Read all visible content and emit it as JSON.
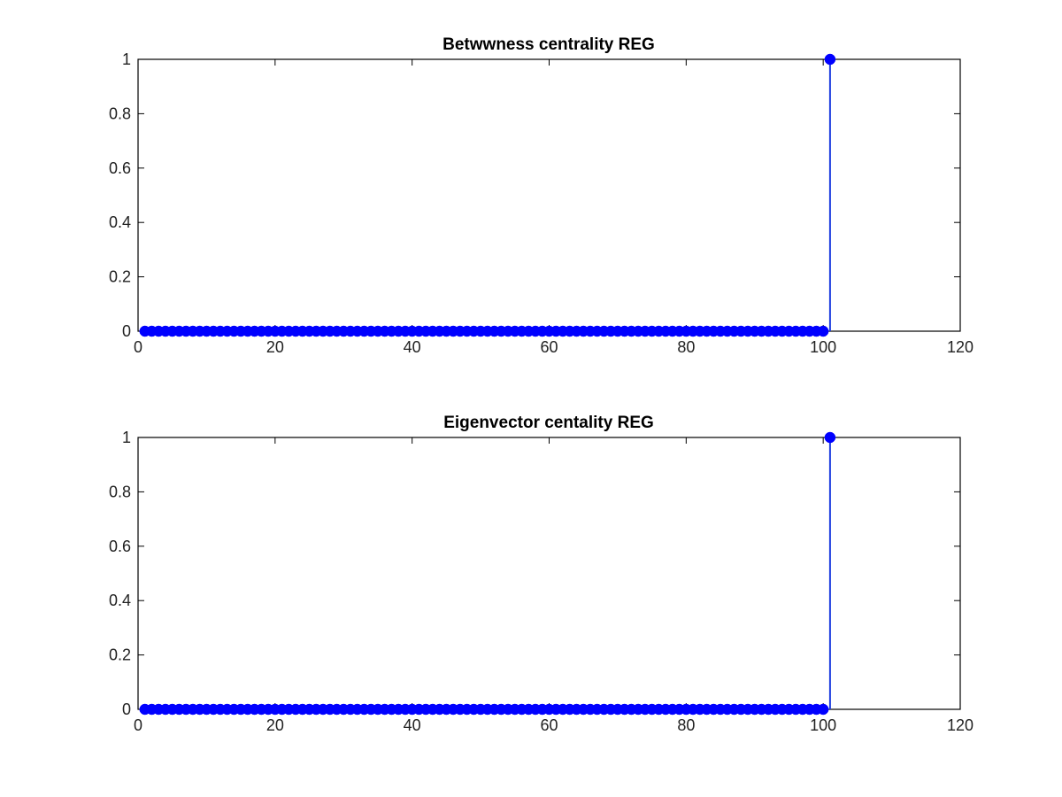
{
  "figure": {
    "background": "#ffffff",
    "axes_color": "#000000",
    "series_color": "#0000ff",
    "stem_color": "#1f3fe0"
  },
  "chart_data": [
    {
      "type": "stem",
      "title": "Betwwness centrality REG",
      "xlabel": "",
      "ylabel": "",
      "xlim": [
        0,
        120
      ],
      "ylim": [
        0,
        1
      ],
      "xticks": [
        0,
        20,
        40,
        60,
        80,
        100,
        120
      ],
      "xtick_labels": [
        "0",
        "20",
        "40",
        "60",
        "80",
        "100",
        "120"
      ],
      "yticks": [
        0,
        0.2,
        0.4,
        0.6,
        0.8,
        1
      ],
      "ytick_labels": [
        "0",
        "0.2",
        "0.4",
        "0.6",
        "0.8",
        "1"
      ],
      "grid": false,
      "box": true,
      "series": [
        {
          "x_start": 1,
          "x_end": 101,
          "values": [
            0,
            0,
            0,
            0,
            0,
            0,
            0,
            0,
            0,
            0,
            0,
            0,
            0,
            0,
            0,
            0,
            0,
            0,
            0,
            0,
            0,
            0,
            0,
            0,
            0,
            0,
            0,
            0,
            0,
            0,
            0,
            0,
            0,
            0,
            0,
            0,
            0,
            0,
            0,
            0,
            0,
            0,
            0,
            0,
            0,
            0,
            0,
            0,
            0,
            0,
            0,
            0,
            0,
            0,
            0,
            0,
            0,
            0,
            0,
            0,
            0,
            0,
            0,
            0,
            0,
            0,
            0,
            0,
            0,
            0,
            0,
            0,
            0,
            0,
            0,
            0,
            0,
            0,
            0,
            0,
            0,
            0,
            0,
            0,
            0,
            0,
            0,
            0,
            0,
            0,
            0,
            0,
            0,
            0,
            0,
            0,
            0,
            0,
            0,
            0,
            1
          ]
        }
      ]
    },
    {
      "type": "stem",
      "title": "Eigenvector centality REG",
      "xlabel": "",
      "ylabel": "",
      "xlim": [
        0,
        120
      ],
      "ylim": [
        0,
        1
      ],
      "xticks": [
        0,
        20,
        40,
        60,
        80,
        100,
        120
      ],
      "xtick_labels": [
        "0",
        "20",
        "40",
        "60",
        "80",
        "100",
        "120"
      ],
      "yticks": [
        0,
        0.2,
        0.4,
        0.6,
        0.8,
        1
      ],
      "ytick_labels": [
        "0",
        "0.2",
        "0.4",
        "0.6",
        "0.8",
        "1"
      ],
      "grid": false,
      "box": true,
      "series": [
        {
          "x_start": 1,
          "x_end": 101,
          "values": [
            0,
            0,
            0,
            0,
            0,
            0,
            0,
            0,
            0,
            0,
            0,
            0,
            0,
            0,
            0,
            0,
            0,
            0,
            0,
            0,
            0,
            0,
            0,
            0,
            0,
            0,
            0,
            0,
            0,
            0,
            0,
            0,
            0,
            0,
            0,
            0,
            0,
            0,
            0,
            0,
            0,
            0,
            0,
            0,
            0,
            0,
            0,
            0,
            0,
            0,
            0,
            0,
            0,
            0,
            0,
            0,
            0,
            0,
            0,
            0,
            0,
            0,
            0,
            0,
            0,
            0,
            0,
            0,
            0,
            0,
            0,
            0,
            0,
            0,
            0,
            0,
            0,
            0,
            0,
            0,
            0,
            0,
            0,
            0,
            0,
            0,
            0,
            0,
            0,
            0,
            0,
            0,
            0,
            0,
            0,
            0,
            0,
            0,
            0,
            0,
            1
          ]
        }
      ]
    }
  ]
}
